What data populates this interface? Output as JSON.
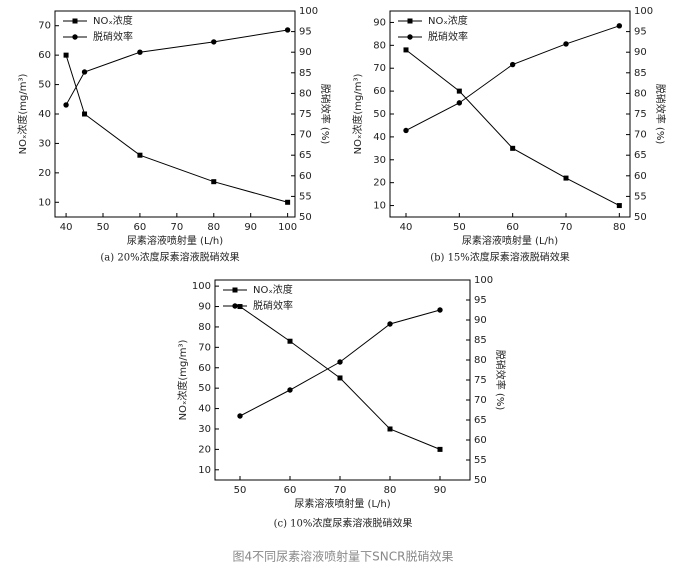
{
  "chart_data": [
    {
      "type": "line",
      "caption": "(a) 20%浓度尿素溶液脱硝效果",
      "x_label": "尿素溶液喷射量 (L/h)",
      "y_label": "NOₓ浓度(mg/m³)",
      "y2_label": "脱硝效率 (%)",
      "x": [
        40,
        45,
        60,
        80,
        100
      ],
      "xlim": [
        37,
        102
      ],
      "xticks": [
        40,
        50,
        60,
        70,
        80,
        90,
        100
      ],
      "ylim": [
        5,
        75
      ],
      "yticks": [
        10,
        20,
        30,
        40,
        50,
        60,
        70
      ],
      "y2lim": [
        50,
        100
      ],
      "y2ticks": [
        50,
        55,
        60,
        65,
        70,
        75,
        80,
        85,
        90,
        95,
        100
      ],
      "series": [
        {
          "name": "NOₓ浓度",
          "color": "#000000",
          "marker": "square",
          "values": [
            60,
            40,
            26,
            17,
            10
          ]
        },
        {
          "name": "脱硝效率",
          "color": "#000000",
          "marker": "circle",
          "axis": "y2",
          "values": [
            77.2,
            85.2,
            90,
            92.5,
            95.4
          ]
        }
      ]
    },
    {
      "type": "line",
      "caption": "(b) 15%浓度尿素溶液脱硝效果",
      "x_label": "尿素溶液喷射量 (L/h)",
      "y_label": "NOₓ浓度(mg/m³)",
      "y2_label": "脱硝效率 (%)",
      "x": [
        40,
        50,
        60,
        70,
        80
      ],
      "xlim": [
        37,
        82
      ],
      "xticks": [
        40,
        50,
        60,
        70,
        80
      ],
      "ylim": [
        5,
        95
      ],
      "yticks": [
        10,
        20,
        30,
        40,
        50,
        60,
        70,
        80,
        90
      ],
      "y2lim": [
        50,
        100
      ],
      "y2ticks": [
        50,
        55,
        60,
        65,
        70,
        75,
        80,
        85,
        90,
        95,
        100
      ],
      "series": [
        {
          "name": "NOₓ浓度",
          "color": "#000000",
          "marker": "square",
          "values": [
            78,
            60,
            35,
            22,
            10
          ]
        },
        {
          "name": "脱硝效率",
          "color": "#000000",
          "marker": "circle",
          "axis": "y2",
          "values": [
            71,
            77.7,
            87,
            92,
            96.4
          ]
        }
      ]
    },
    {
      "type": "line",
      "caption": "(c) 10%浓度尿素溶液脱硝效果",
      "x_label": "尿素溶液喷射量 (L/h)",
      "y_label": "NOₓ浓度(mg/m³)",
      "y2_label": "脱硝效率 (%)",
      "x": [
        50,
        60,
        70,
        80,
        90
      ],
      "xlim": [
        45,
        96
      ],
      "xticks": [
        50,
        60,
        70,
        80,
        90
      ],
      "ylim": [
        5,
        103
      ],
      "yticks": [
        10,
        20,
        30,
        40,
        50,
        60,
        70,
        80,
        90,
        100
      ],
      "y2lim": [
        50,
        100
      ],
      "y2ticks": [
        50,
        55,
        60,
        65,
        70,
        75,
        80,
        85,
        90,
        95,
        100
      ],
      "series": [
        {
          "name": "NOₓ浓度",
          "color": "#000000",
          "marker": "square",
          "values": [
            90,
            73,
            55,
            30,
            20
          ]
        },
        {
          "name": "脱硝效率",
          "color": "#000000",
          "marker": "circle",
          "axis": "y2",
          "values": [
            66,
            72.5,
            79.5,
            89,
            92.5
          ]
        }
      ]
    }
  ],
  "figure_caption": "图4不同尿素溶液喷射量下SNCR脱硝效果"
}
